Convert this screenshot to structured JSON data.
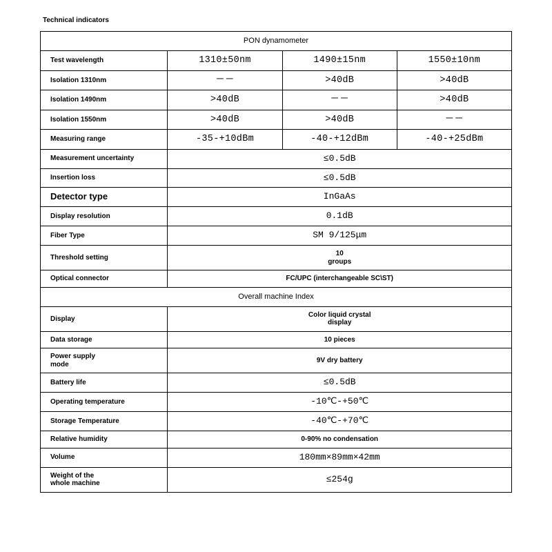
{
  "title": "Technical indicators",
  "section1_header": "PON dynamometer",
  "section2_header": "Overall machine Index",
  "specs_3col": [
    {
      "label": "Test wavelength",
      "v1": "1310±50nm",
      "v2": "1490±15nm",
      "v3": "1550±10nm"
    },
    {
      "label": "Isolation 1310nm",
      "v1": "－－",
      "v2": ">40dB",
      "v3": ">40dB"
    },
    {
      "label": "Isolation 1490nm",
      "v1": ">40dB",
      "v2": "－－",
      "v3": ">40dB"
    },
    {
      "label": "Isolation 1550nm",
      "v1": ">40dB",
      "v2": ">40dB",
      "v3": "－－"
    },
    {
      "label": "Measuring range",
      "v1": "-35-+10dBm",
      "v2": "-40-+12dBm",
      "v3": "-40-+25dBm"
    }
  ],
  "specs_full": [
    {
      "label": "Measurement uncertainty",
      "val": "≤0.5dB",
      "style": "mono"
    },
    {
      "label": "Insertion loss",
      "val": "≤0.5dB",
      "style": "mono"
    },
    {
      "label": "Detector type",
      "val": "InGaAs",
      "style": "mono",
      "biglabel": true
    },
    {
      "label": "Display resolution",
      "val": "0.1dB",
      "style": "mono"
    },
    {
      "label": "Fiber Type",
      "val": "SM 9/125μm",
      "style": "mono"
    },
    {
      "label": "Threshold setting",
      "val": "10",
      "val2": "groups",
      "style": "small"
    },
    {
      "label": "Optical connector",
      "val": "FC/UPC (interchangeable SC\\ST)",
      "style": "small"
    }
  ],
  "specs2_full": [
    {
      "label": "Display",
      "val": "Color liquid crystal",
      "val2": "display",
      "style": "small"
    },
    {
      "label": "Data storage",
      "val": "10 pieces",
      "style": "small"
    },
    {
      "label": "Power supply",
      "label2": "mode",
      "val": "9V dry battery",
      "style": "small"
    },
    {
      "label": "Battery life",
      "val": "≤0.5dB",
      "style": "mono"
    },
    {
      "label": "Operating temperature",
      "val": "-10℃-+50℃",
      "style": "mono"
    },
    {
      "label": "Storage Temperature",
      "val": "-40℃-+70℃",
      "style": "mono"
    },
    {
      "label": "Relative humidity",
      "val": "0-90% no condensation",
      "style": "small"
    },
    {
      "label": "Volume",
      "val": "180mm×89mm×42mm",
      "style": "mono"
    },
    {
      "label": "Weight of the",
      "label2": "whole machine",
      "val": "≤254g",
      "style": "mono"
    }
  ]
}
